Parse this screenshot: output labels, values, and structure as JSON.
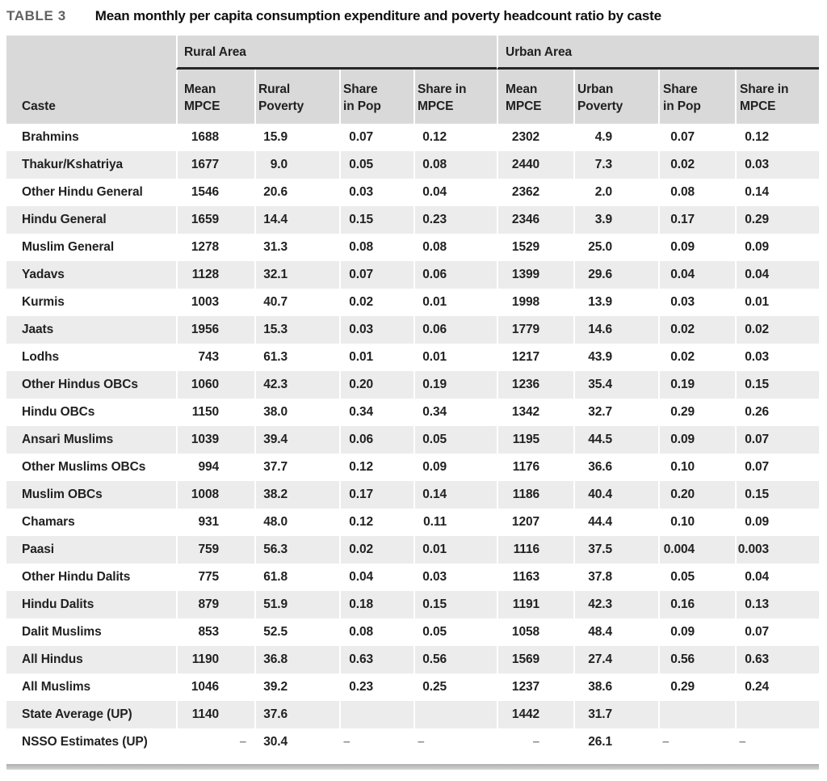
{
  "title": {
    "label": "TABLE 3",
    "caption": "Mean monthly per capita consumption expenditure and poverty headcount ratio by caste"
  },
  "colors": {
    "header_bg": "#d9d9d9",
    "stripe_bg": "#ececec",
    "rule_color": "#262626",
    "text_color": "#212121",
    "dash_color": "#8f8f8f",
    "label_gray": "#616161"
  },
  "table": {
    "group_headers": {
      "rural": "Rural Area",
      "urban": "Urban Area"
    },
    "column_headers": [
      "Caste",
      "Mean\nMPCE",
      "Rural\nPoverty",
      "Share\nin Pop",
      "Share in\nMPCE",
      "Mean\nMPCE",
      "Urban\nPoverty",
      "Share\nin Pop",
      "Share in\nMPCE"
    ],
    "rows": [
      {
        "caste": "Brahmins",
        "values": [
          "1688",
          "15.9",
          "0.07",
          "0.12",
          "2302",
          "4.9",
          "0.07",
          "0.12"
        ]
      },
      {
        "caste": "Thakur/Kshatriya",
        "values": [
          "1677",
          "9.0",
          "0.05",
          "0.08",
          "2440",
          "7.3",
          "0.02",
          "0.03"
        ]
      },
      {
        "caste": "Other Hindu General",
        "values": [
          "1546",
          "20.6",
          "0.03",
          "0.04",
          "2362",
          "2.0",
          "0.08",
          "0.14"
        ]
      },
      {
        "caste": "Hindu General",
        "values": [
          "1659",
          "14.4",
          "0.15",
          "0.23",
          "2346",
          "3.9",
          "0.17",
          "0.29"
        ]
      },
      {
        "caste": "Muslim General",
        "values": [
          "1278",
          "31.3",
          "0.08",
          "0.08",
          "1529",
          "25.0",
          "0.09",
          "0.09"
        ]
      },
      {
        "caste": "Yadavs",
        "values": [
          "1128",
          "32.1",
          "0.07",
          "0.06",
          "1399",
          "29.6",
          "0.04",
          "0.04"
        ]
      },
      {
        "caste": "Kurmis",
        "values": [
          "1003",
          "40.7",
          "0.02",
          "0.01",
          "1998",
          "13.9",
          "0.03",
          "0.01"
        ]
      },
      {
        "caste": "Jaats",
        "values": [
          "1956",
          "15.3",
          "0.03",
          "0.06",
          "1779",
          "14.6",
          "0.02",
          "0.02"
        ]
      },
      {
        "caste": "Lodhs",
        "values": [
          "743",
          "61.3",
          "0.01",
          "0.01",
          "1217",
          "43.9",
          "0.02",
          "0.03"
        ]
      },
      {
        "caste": "Other Hindus OBCs",
        "values": [
          "1060",
          "42.3",
          "0.20",
          "0.19",
          "1236",
          "35.4",
          "0.19",
          "0.15"
        ]
      },
      {
        "caste": "Hindu OBCs",
        "values": [
          "1150",
          "38.0",
          "0.34",
          "0.34",
          "1342",
          "32.7",
          "0.29",
          "0.26"
        ]
      },
      {
        "caste": "Ansari Muslims",
        "values": [
          "1039",
          "39.4",
          "0.06",
          "0.05",
          "1195",
          "44.5",
          "0.09",
          "0.07"
        ]
      },
      {
        "caste": "Other Muslims OBCs",
        "values": [
          "994",
          "37.7",
          "0.12",
          "0.09",
          "1176",
          "36.6",
          "0.10",
          "0.07"
        ]
      },
      {
        "caste": "Muslim OBCs",
        "values": [
          "1008",
          "38.2",
          "0.17",
          "0.14",
          "1186",
          "40.4",
          "0.20",
          "0.15"
        ]
      },
      {
        "caste": "Chamars",
        "values": [
          "931",
          "48.0",
          "0.12",
          "0.11",
          "1207",
          "44.4",
          "0.10",
          "0.09"
        ]
      },
      {
        "caste": "Paasi",
        "values": [
          "759",
          "56.3",
          "0.02",
          "0.01",
          "1116",
          "37.5",
          "0.004",
          "0.003"
        ]
      },
      {
        "caste": "Other Hindu Dalits",
        "values": [
          "775",
          "61.8",
          "0.04",
          "0.03",
          "1163",
          "37.8",
          "0.05",
          "0.04"
        ]
      },
      {
        "caste": "Hindu Dalits",
        "values": [
          "879",
          "51.9",
          "0.18",
          "0.15",
          "1191",
          "42.3",
          "0.16",
          "0.13"
        ]
      },
      {
        "caste": "Dalit Muslims",
        "values": [
          "853",
          "52.5",
          "0.08",
          "0.05",
          "1058",
          "48.4",
          "0.09",
          "0.07"
        ]
      },
      {
        "caste": "All Hindus",
        "values": [
          "1190",
          "36.8",
          "0.63",
          "0.56",
          "1569",
          "27.4",
          "0.56",
          "0.63"
        ]
      },
      {
        "caste": "All Muslims",
        "values": [
          "1046",
          "39.2",
          "0.23",
          "0.25",
          "1237",
          "38.6",
          "0.29",
          "0.24"
        ]
      },
      {
        "caste": "State Average (UP)",
        "values": [
          "1140",
          "37.6",
          "",
          "",
          "1442",
          "31.7",
          "",
          ""
        ]
      },
      {
        "caste": "NSSO Estimates (UP)",
        "values": [
          "–",
          "30.4",
          "–",
          "–",
          "–",
          "26.1",
          "–",
          "–"
        ]
      }
    ]
  }
}
